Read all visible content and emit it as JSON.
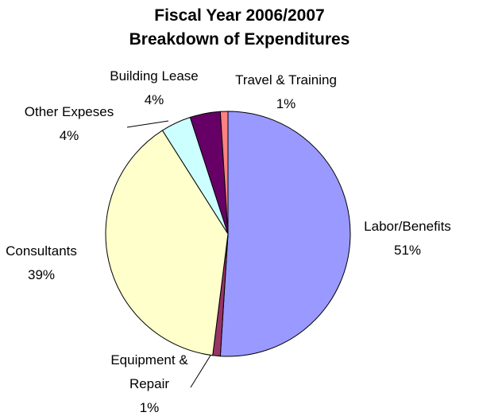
{
  "chart_data": {
    "type": "pie",
    "title": [
      "Fiscal Year 2006/2007",
      "Breakdown of Expenditures"
    ],
    "categories": [
      "Labor/Benefits",
      "Equipment & Repair",
      "Consultants",
      "Other Expeses",
      "Building Lease",
      "Travel & Training"
    ],
    "values": [
      51,
      1,
      39,
      4,
      4,
      1
    ],
    "value_labels": [
      "51%",
      "1%",
      "39%",
      "4%",
      "4%",
      "1%"
    ],
    "colors": [
      "#9999ff",
      "#993366",
      "#ffffcc",
      "#ccffff",
      "#660066",
      "#ff8080"
    ]
  }
}
